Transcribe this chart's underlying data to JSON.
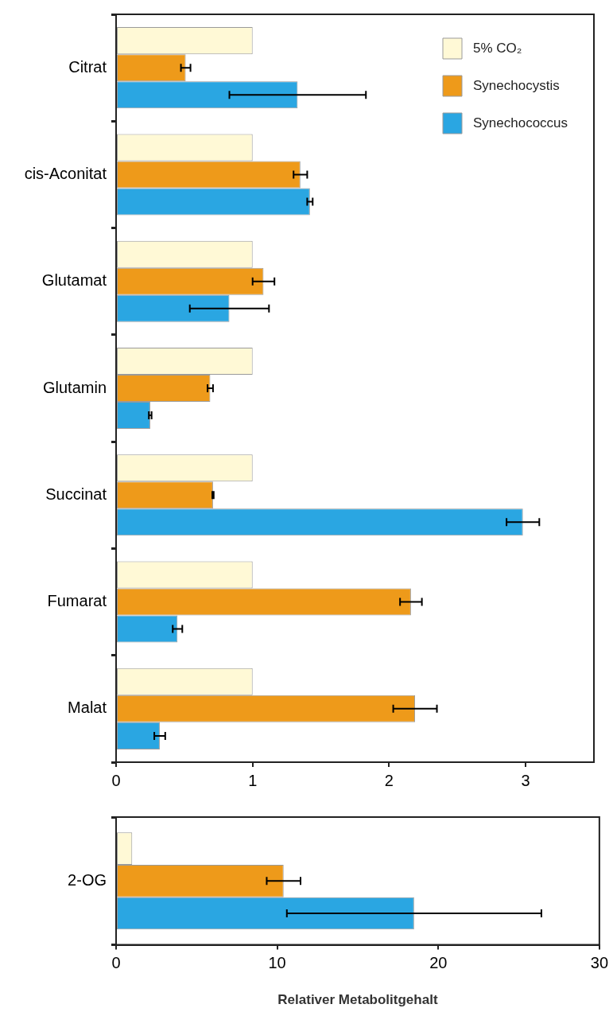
{
  "chart_data": [
    {
      "type": "bar",
      "orientation": "horizontal",
      "categories": [
        "Citrat",
        "cis-Aconitat",
        "Glutamat",
        "Glutamin",
        "Succinat",
        "Fumarat",
        "Malat"
      ],
      "series": [
        {
          "name": "5% CO₂",
          "color": "#fff9d6",
          "values": [
            1,
            1,
            1,
            1,
            1,
            1,
            1
          ]
        },
        {
          "name": "Synechocystis",
          "color": "#ee9a1a",
          "values": [
            0.51,
            1.35,
            1.08,
            0.69,
            0.71,
            2.16,
            2.19
          ],
          "errors": [
            0.035,
            0.05,
            0.08,
            0.02,
            0.005,
            0.08,
            0.16
          ]
        },
        {
          "name": "Synechococcus",
          "color": "#2aa6e2",
          "values": [
            1.33,
            1.42,
            0.83,
            0.25,
            2.98,
            0.45,
            0.32
          ],
          "errors": [
            0.5,
            0.02,
            0.29,
            0.01,
            0.12,
            0.035,
            0.04
          ]
        }
      ],
      "xlim": [
        0,
        3.5
      ],
      "xticks": [
        0,
        1,
        2,
        3
      ],
      "grid": false,
      "legend": "top right"
    },
    {
      "type": "bar",
      "orientation": "horizontal",
      "categories": [
        "2-OG"
      ],
      "series": [
        {
          "color": "#fff9d6",
          "values": [
            1
          ]
        },
        {
          "color": "#ee9a1a",
          "values": [
            10.4
          ],
          "errors": [
            1.05
          ]
        },
        {
          "color": "#2aa6e2",
          "values": [
            18.5
          ],
          "errors": [
            7.9
          ]
        }
      ],
      "xlim": [
        0,
        30
      ],
      "xticks": [
        0,
        10,
        20,
        30
      ],
      "xlabel": "Relativer Metabolitgehalt",
      "grid": false,
      "legend": false
    }
  ]
}
